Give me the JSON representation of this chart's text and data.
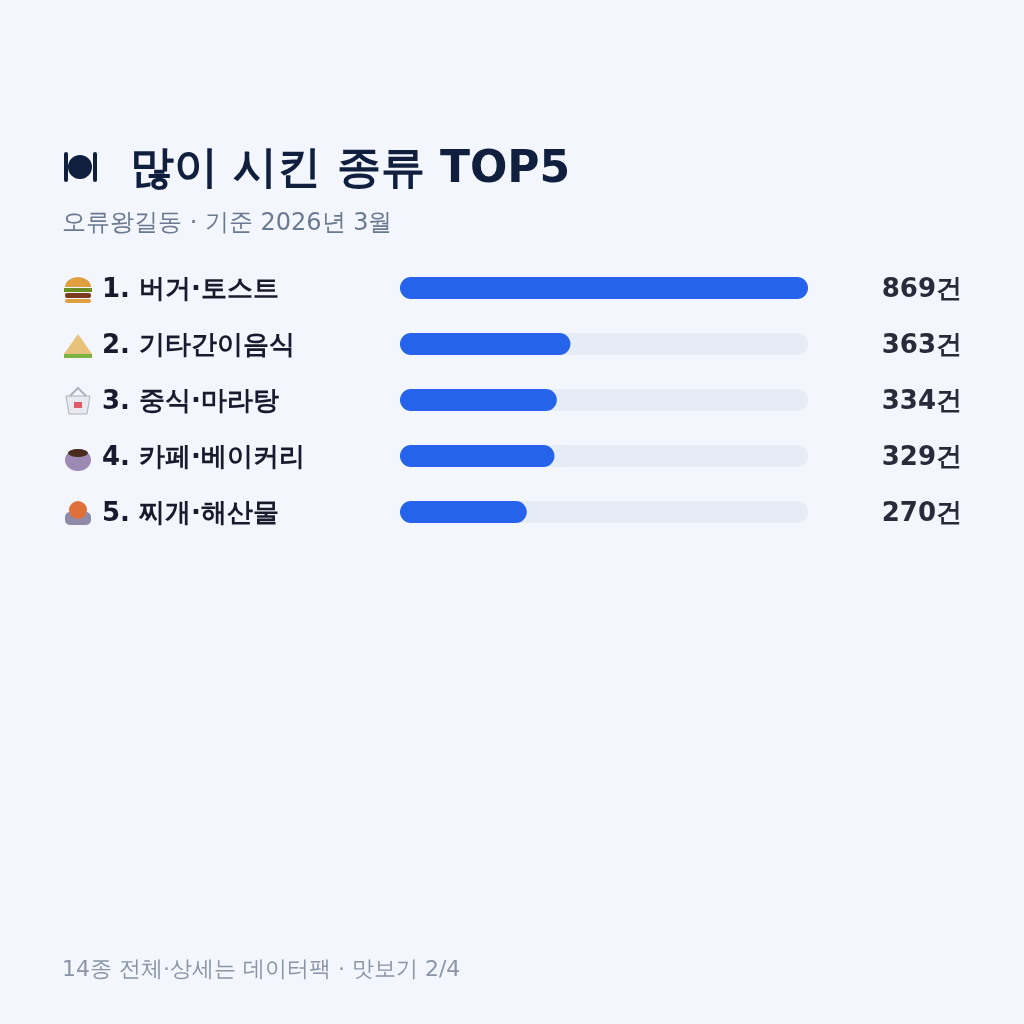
{
  "chart_data": {
    "type": "bar",
    "orientation": "horizontal",
    "title": "많이 시킨 종류 TOP5",
    "subtitle": "오류왕길동 · 기준 2026년 3월",
    "categories": [
      "1. 버거·토스트",
      "2. 기타간이음식",
      "3. 중식·마라탕",
      "4. 카페·베이커리",
      "5. 찌개·해산물"
    ],
    "values": [
      869,
      363,
      334,
      329,
      270
    ],
    "color": "#2563eb",
    "value_labels": [
      "869건",
      "363건",
      "334건",
      "329건",
      "270건"
    ],
    "annotations": [
      "14종 전체·상세는 데이터팩 · 맛보기 2/4"
    ]
  }
}
